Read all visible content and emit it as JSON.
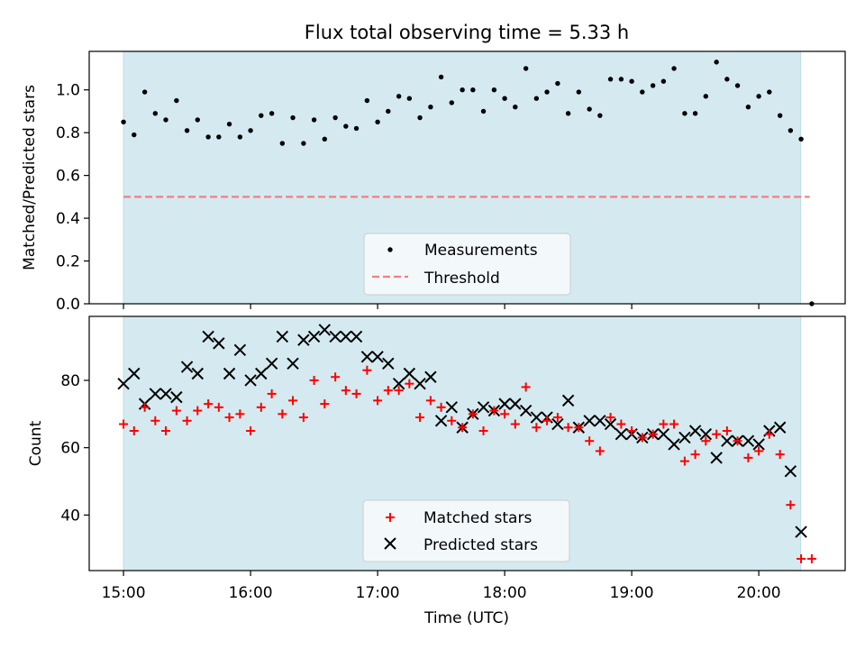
{
  "chart_data": {
    "type": "scatter",
    "title": "Flux total observing time = 5.33 h",
    "xlabel": "Time (UTC)",
    "x_tick_labels": [
      "15:00",
      "16:00",
      "17:00",
      "18:00",
      "19:00",
      "20:00"
    ],
    "x_ticks_hours": [
      15,
      16,
      17,
      18,
      19,
      20
    ],
    "xlim_hours": [
      14.73,
      20.68
    ],
    "observing_window_hours": [
      15.0,
      20.33
    ],
    "observing_window_color": "#d4eaf0",
    "panels": [
      {
        "ylabel": "Matched/Predicted stars",
        "ylim": [
          0,
          1.18
        ],
        "y_ticks": [
          0.0,
          0.2,
          0.4,
          0.6,
          0.8,
          1.0
        ],
        "y_tick_labels": [
          "0.0",
          "0.2",
          "0.4",
          "0.6",
          "0.8",
          "1.0"
        ],
        "legend_placement": "lower-center",
        "series": [
          {
            "name": "Measurements",
            "marker": "dot",
            "color": "#000000",
            "points": [
              [
                15.0,
                0.85
              ],
              [
                15.083,
                0.79
              ],
              [
                15.167,
                0.99
              ],
              [
                15.25,
                0.89
              ],
              [
                15.333,
                0.86
              ],
              [
                15.417,
                0.95
              ],
              [
                15.5,
                0.81
              ],
              [
                15.583,
                0.86
              ],
              [
                15.667,
                0.78
              ],
              [
                15.75,
                0.78
              ],
              [
                15.833,
                0.84
              ],
              [
                15.917,
                0.78
              ],
              [
                16.0,
                0.81
              ],
              [
                16.083,
                0.88
              ],
              [
                16.167,
                0.89
              ],
              [
                16.25,
                0.75
              ],
              [
                16.333,
                0.87
              ],
              [
                16.417,
                0.75
              ],
              [
                16.5,
                0.86
              ],
              [
                16.583,
                0.77
              ],
              [
                16.667,
                0.87
              ],
              [
                16.75,
                0.83
              ],
              [
                16.833,
                0.82
              ],
              [
                16.917,
                0.95
              ],
              [
                17.0,
                0.85
              ],
              [
                17.083,
                0.9
              ],
              [
                17.167,
                0.97
              ],
              [
                17.25,
                0.96
              ],
              [
                17.333,
                0.87
              ],
              [
                17.417,
                0.92
              ],
              [
                17.5,
                1.06
              ],
              [
                17.583,
                0.94
              ],
              [
                17.667,
                1.0
              ],
              [
                17.75,
                1.0
              ],
              [
                17.833,
                0.9
              ],
              [
                17.917,
                1.0
              ],
              [
                18.0,
                0.96
              ],
              [
                18.083,
                0.92
              ],
              [
                18.167,
                1.1
              ],
              [
                18.25,
                0.96
              ],
              [
                18.333,
                0.99
              ],
              [
                18.417,
                1.03
              ],
              [
                18.5,
                0.89
              ],
              [
                18.583,
                0.99
              ],
              [
                18.667,
                0.91
              ],
              [
                18.75,
                0.88
              ],
              [
                18.833,
                1.05
              ],
              [
                18.917,
                1.05
              ],
              [
                19.0,
                1.04
              ],
              [
                19.083,
                0.99
              ],
              [
                19.167,
                1.02
              ],
              [
                19.25,
                1.04
              ],
              [
                19.333,
                1.1
              ],
              [
                19.417,
                0.89
              ],
              [
                19.5,
                0.89
              ],
              [
                19.583,
                0.97
              ],
              [
                19.667,
                1.13
              ],
              [
                19.75,
                1.05
              ],
              [
                19.833,
                1.02
              ],
              [
                19.917,
                0.92
              ],
              [
                20.0,
                0.97
              ],
              [
                20.083,
                0.99
              ],
              [
                20.167,
                0.88
              ],
              [
                20.25,
                0.81
              ],
              [
                20.333,
                0.77
              ],
              [
                20.417,
                0.0
              ]
            ]
          },
          {
            "name": "Threshold",
            "marker": "dashed-line",
            "color": "#f08080",
            "value": 0.5,
            "x_range": [
              15.0,
              20.4
            ]
          }
        ]
      },
      {
        "ylabel": "Count",
        "ylim": [
          23.5,
          99
        ],
        "y_ticks": [
          40,
          60,
          80
        ],
        "y_tick_labels": [
          "40",
          "60",
          "80"
        ],
        "legend_placement": "lower-center",
        "series": [
          {
            "name": "Matched stars",
            "marker": "plus",
            "color": "#ff0000",
            "points": [
              [
                15.0,
                67
              ],
              [
                15.083,
                65
              ],
              [
                15.167,
                72
              ],
              [
                15.25,
                68
              ],
              [
                15.333,
                65
              ],
              [
                15.417,
                71
              ],
              [
                15.5,
                68
              ],
              [
                15.583,
                71
              ],
              [
                15.667,
                73
              ],
              [
                15.75,
                72
              ],
              [
                15.833,
                69
              ],
              [
                15.917,
                70
              ],
              [
                16.0,
                65
              ],
              [
                16.083,
                72
              ],
              [
                16.167,
                76
              ],
              [
                16.25,
                70
              ],
              [
                16.333,
                74
              ],
              [
                16.417,
                69
              ],
              [
                16.5,
                80
              ],
              [
                16.583,
                73
              ],
              [
                16.667,
                81
              ],
              [
                16.75,
                77
              ],
              [
                16.833,
                76
              ],
              [
                16.917,
                83
              ],
              [
                17.0,
                74
              ],
              [
                17.083,
                77
              ],
              [
                17.167,
                77
              ],
              [
                17.25,
                79
              ],
              [
                17.333,
                69
              ],
              [
                17.417,
                74
              ],
              [
                17.5,
                72
              ],
              [
                17.583,
                68
              ],
              [
                17.667,
                66
              ],
              [
                17.75,
                70
              ],
              [
                17.833,
                65
              ],
              [
                17.917,
                71
              ],
              [
                18.0,
                70
              ],
              [
                18.083,
                67
              ],
              [
                18.167,
                78
              ],
              [
                18.25,
                66
              ],
              [
                18.333,
                68
              ],
              [
                18.417,
                69
              ],
              [
                18.5,
                66
              ],
              [
                18.583,
                66
              ],
              [
                18.667,
                62
              ],
              [
                18.75,
                59
              ],
              [
                18.833,
                69
              ],
              [
                18.917,
                67
              ],
              [
                19.0,
                65
              ],
              [
                19.083,
                63
              ],
              [
                19.167,
                64
              ],
              [
                19.25,
                67
              ],
              [
                19.333,
                67
              ],
              [
                19.417,
                56
              ],
              [
                19.5,
                58
              ],
              [
                19.583,
                62
              ],
              [
                19.667,
                64
              ],
              [
                19.75,
                65
              ],
              [
                19.833,
                62
              ],
              [
                19.917,
                57
              ],
              [
                20.0,
                59
              ],
              [
                20.083,
                64
              ],
              [
                20.167,
                58
              ],
              [
                20.25,
                43
              ],
              [
                20.333,
                27
              ],
              [
                20.417,
                27
              ]
            ]
          },
          {
            "name": "Predicted stars",
            "marker": "x",
            "color": "#000000",
            "points": [
              [
                15.0,
                79
              ],
              [
                15.083,
                82
              ],
              [
                15.167,
                73
              ],
              [
                15.25,
                76
              ],
              [
                15.333,
                76
              ],
              [
                15.417,
                75
              ],
              [
                15.5,
                84
              ],
              [
                15.583,
                82
              ],
              [
                15.667,
                93
              ],
              [
                15.75,
                91
              ],
              [
                15.833,
                82
              ],
              [
                15.917,
                89
              ],
              [
                16.0,
                80
              ],
              [
                16.083,
                82
              ],
              [
                16.167,
                85
              ],
              [
                16.25,
                93
              ],
              [
                16.333,
                85
              ],
              [
                16.417,
                92
              ],
              [
                16.5,
                93
              ],
              [
                16.583,
                95
              ],
              [
                16.667,
                93
              ],
              [
                16.75,
                93
              ],
              [
                16.833,
                93
              ],
              [
                16.917,
                87
              ],
              [
                17.0,
                87
              ],
              [
                17.083,
                85
              ],
              [
                17.167,
                79
              ],
              [
                17.25,
                82
              ],
              [
                17.333,
                79
              ],
              [
                17.417,
                81
              ],
              [
                17.5,
                68
              ],
              [
                17.583,
                72
              ],
              [
                17.667,
                66
              ],
              [
                17.75,
                70
              ],
              [
                17.833,
                72
              ],
              [
                17.917,
                71
              ],
              [
                18.0,
                73
              ],
              [
                18.083,
                73
              ],
              [
                18.167,
                71
              ],
              [
                18.25,
                69
              ],
              [
                18.333,
                69
              ],
              [
                18.417,
                67
              ],
              [
                18.5,
                74
              ],
              [
                18.583,
                66
              ],
              [
                18.667,
                68
              ],
              [
                18.75,
                68
              ],
              [
                18.833,
                67
              ],
              [
                18.917,
                64
              ],
              [
                19.0,
                64
              ],
              [
                19.083,
                63
              ],
              [
                19.167,
                64
              ],
              [
                19.25,
                64
              ],
              [
                19.333,
                61
              ],
              [
                19.417,
                63
              ],
              [
                19.5,
                65
              ],
              [
                19.583,
                64
              ],
              [
                19.667,
                57
              ],
              [
                19.75,
                62
              ],
              [
                19.833,
                62
              ],
              [
                19.917,
                62
              ],
              [
                20.0,
                61
              ],
              [
                20.083,
                65
              ],
              [
                20.167,
                66
              ],
              [
                20.25,
                53
              ],
              [
                20.333,
                35
              ]
            ]
          }
        ]
      }
    ]
  }
}
